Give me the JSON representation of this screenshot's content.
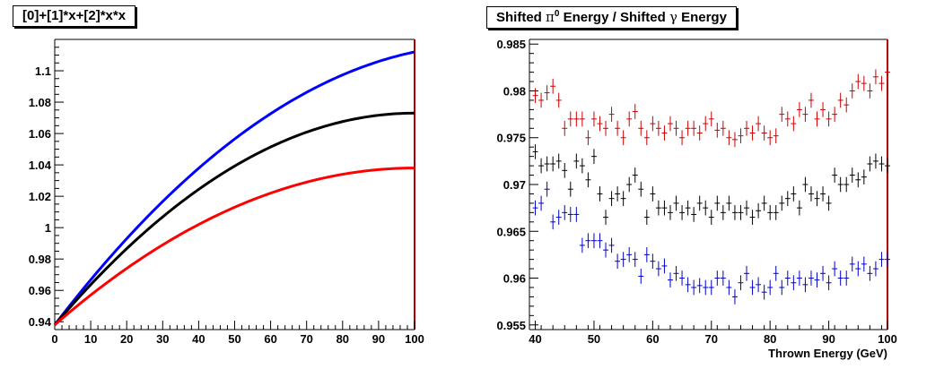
{
  "chart_data": [
    {
      "type": "line",
      "title": "[0]+[1]*x+[2]*x*x",
      "xlabel": "",
      "ylabel": "",
      "xlim": [
        0,
        100
      ],
      "ylim": [
        0.935,
        1.12
      ],
      "x_ticks": [
        "0",
        "10",
        "20",
        "30",
        "40",
        "50",
        "60",
        "70",
        "80",
        "90",
        "100"
      ],
      "y_ticks": [
        "0.94",
        "0.96",
        "0.98",
        "1",
        "1.02",
        "1.04",
        "1.06",
        "1.08",
        "1.1"
      ],
      "series": [
        {
          "color": "#0000ff",
          "coefficients": [
            0.938,
            0.003,
            -1.26e-05
          ]
        },
        {
          "color": "#000000",
          "coefficients": [
            0.938,
            0.0027,
            -1.35e-05
          ]
        },
        {
          "color": "#ff0000",
          "coefficients": [
            0.938,
            0.002,
            -1e-05
          ]
        }
      ]
    },
    {
      "type": "scatter",
      "title_main": "Shifted ",
      "title_pi": "π",
      "title_sup": "0",
      "title_mid": " Energy / Shifted ",
      "title_gamma": "γ",
      "title_end": " Energy",
      "xlabel": "Thrown Energy (GeV)",
      "ylabel": "",
      "xlim": [
        39,
        100
      ],
      "ylim": [
        0.9545,
        0.9855
      ],
      "x_ticks": [
        "40",
        "50",
        "60",
        "70",
        "80",
        "90",
        "100"
      ],
      "y_ticks": [
        "0.955",
        "0.96",
        "0.965",
        "0.97",
        "0.975",
        "0.98",
        "0.985"
      ],
      "x": [
        40,
        41,
        42,
        43,
        44,
        45,
        46,
        47,
        48,
        49,
        50,
        51,
        52,
        53,
        54,
        55,
        56,
        57,
        58,
        59,
        60,
        61,
        62,
        63,
        64,
        65,
        66,
        67,
        68,
        69,
        70,
        71,
        72,
        73,
        74,
        75,
        76,
        77,
        78,
        79,
        80,
        81,
        82,
        83,
        84,
        85,
        86,
        87,
        88,
        89,
        90,
        91,
        92,
        93,
        94,
        95,
        96,
        97,
        98,
        99,
        100
      ],
      "series": [
        {
          "color": "#cc0000",
          "values": [
            0.9795,
            0.979,
            0.9798,
            0.9805,
            0.979,
            0.976,
            0.977,
            0.977,
            0.977,
            0.975,
            0.977,
            0.9765,
            0.976,
            0.9775,
            0.976,
            0.975,
            0.977,
            0.9778,
            0.976,
            0.975,
            0.9765,
            0.976,
            0.9755,
            0.9765,
            0.976,
            0.975,
            0.976,
            0.976,
            0.9755,
            0.9765,
            0.977,
            0.9758,
            0.976,
            0.975,
            0.9748,
            0.9752,
            0.976,
            0.9755,
            0.9765,
            0.9755,
            0.975,
            0.9752,
            0.9775,
            0.977,
            0.9765,
            0.978,
            0.9775,
            0.979,
            0.977,
            0.978,
            0.977,
            0.9775,
            0.979,
            0.9785,
            0.98,
            0.981,
            0.9808,
            0.98,
            0.9815,
            0.9808,
            0.982
          ]
        },
        {
          "color": "#000000",
          "values": [
            0.9735,
            0.972,
            0.9722,
            0.9722,
            0.9725,
            0.9715,
            0.9695,
            0.9725,
            0.972,
            0.9705,
            0.973,
            0.969,
            0.9665,
            0.9685,
            0.969,
            0.9685,
            0.97,
            0.971,
            0.9695,
            0.9665,
            0.969,
            0.9675,
            0.9675,
            0.967,
            0.968,
            0.967,
            0.9675,
            0.9668,
            0.968,
            0.9675,
            0.9665,
            0.968,
            0.967,
            0.968,
            0.967,
            0.967,
            0.9675,
            0.9665,
            0.9672,
            0.968,
            0.967,
            0.967,
            0.968,
            0.9685,
            0.969,
            0.9675,
            0.97,
            0.969,
            0.9685,
            0.969,
            0.968,
            0.971,
            0.97,
            0.97,
            0.971,
            0.9705,
            0.9708,
            0.9722,
            0.9725,
            0.9722,
            0.972
          ]
        },
        {
          "color": "#0000cc",
          "values": [
            0.9675,
            0.968,
            0.9695,
            0.966,
            0.9665,
            0.967,
            0.9668,
            0.9668,
            0.9635,
            0.964,
            0.964,
            0.964,
            0.963,
            0.9635,
            0.9618,
            0.962,
            0.9625,
            0.962,
            0.9602,
            0.9625,
            0.9618,
            0.961,
            0.9613,
            0.9598,
            0.9605,
            0.96,
            0.9593,
            0.959,
            0.9592,
            0.959,
            0.959,
            0.96,
            0.96,
            0.959,
            0.958,
            0.9595,
            0.9605,
            0.959,
            0.9593,
            0.9585,
            0.959,
            0.9605,
            0.959,
            0.96,
            0.9595,
            0.96,
            0.9593,
            0.96,
            0.9598,
            0.9605,
            0.9595,
            0.961,
            0.96,
            0.96,
            0.9615,
            0.961,
            0.9615,
            0.9605,
            0.961,
            0.962,
            0.962
          ]
        }
      ]
    }
  ]
}
